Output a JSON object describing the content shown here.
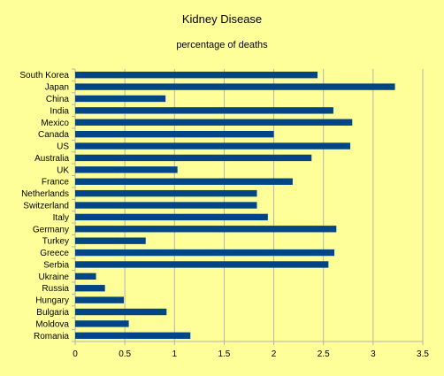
{
  "chart_data": {
    "type": "bar",
    "orientation": "horizontal",
    "title": "Kidney Disease",
    "subtitle": "percentage of deaths",
    "xlabel": "",
    "ylabel": "",
    "xlim": [
      0,
      3.5
    ],
    "x_ticks": [
      "0",
      "0.5",
      "1",
      "1.5",
      "2",
      "2.5",
      "3",
      "3.5"
    ],
    "grid": "vertical",
    "legend": "none",
    "bar_color": "#004586",
    "background_color": "#ffff99",
    "categories": [
      "South Korea",
      "Japan",
      "China",
      "India",
      "Mexico",
      "Canada",
      "US",
      "Australia",
      "UK",
      "France",
      "Netherlands",
      "Switzerland",
      "Italy",
      "Germany",
      "Turkey",
      "Greece",
      "Serbia",
      "Ukraine",
      "Russia",
      "Hungary",
      "Bulgaria",
      "Moldova",
      "Romania"
    ],
    "values": [
      2.44,
      3.22,
      0.91,
      2.6,
      2.79,
      2.0,
      2.77,
      2.38,
      1.03,
      2.19,
      1.83,
      1.83,
      1.94,
      2.63,
      0.71,
      2.61,
      2.55,
      0.21,
      0.3,
      0.49,
      0.92,
      0.54,
      1.16
    ]
  }
}
